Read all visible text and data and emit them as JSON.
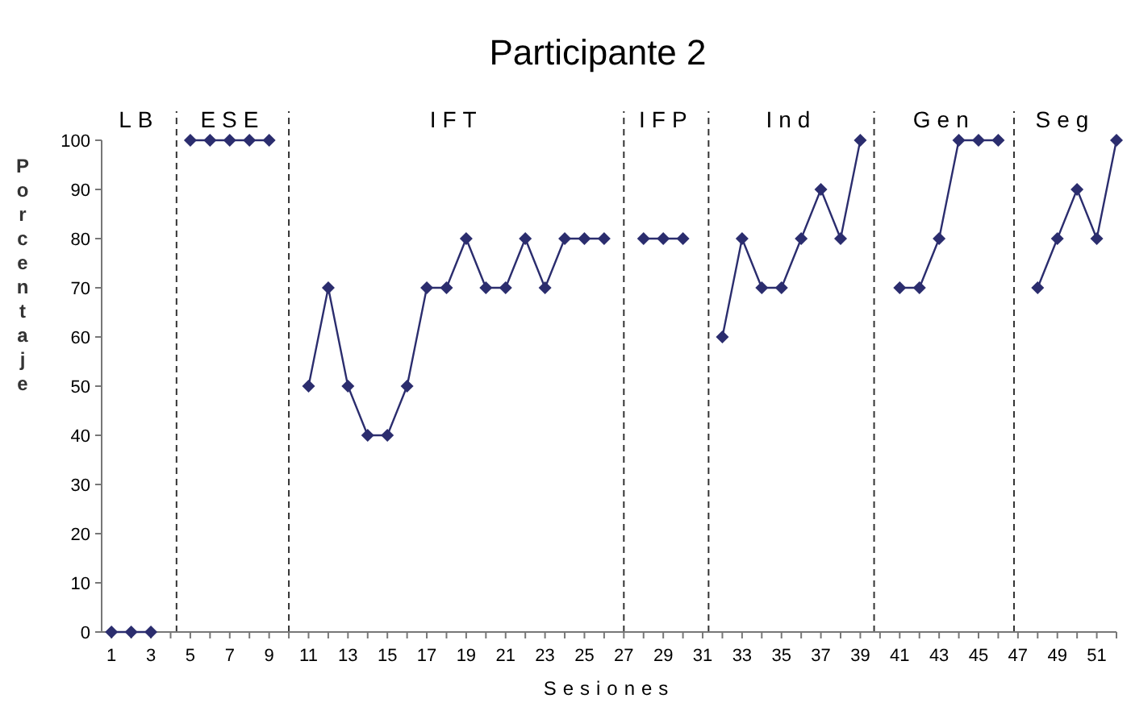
{
  "chart_data": {
    "type": "line",
    "title": "Participante 2",
    "xlabel": "Sesiones",
    "ylabel": "Porcentaje",
    "series": [
      {
        "color": "#2b2d6e",
        "x": [
          1,
          2,
          3
        ],
        "values": [
          0,
          0,
          0
        ]
      },
      {
        "color": "#2b2d6e",
        "x": [
          5,
          6,
          7,
          8,
          9
        ],
        "values": [
          100,
          100,
          100,
          100,
          100
        ]
      },
      {
        "color": "#2b2d6e",
        "x": [
          11,
          12,
          13,
          14,
          15,
          16,
          17,
          18,
          19,
          20,
          21,
          22,
          23,
          24,
          25,
          26
        ],
        "values": [
          50,
          70,
          50,
          40,
          40,
          50,
          70,
          70,
          80,
          70,
          70,
          80,
          70,
          80,
          80,
          80
        ]
      },
      {
        "color": "#2b2d6e",
        "x": [
          28,
          29,
          30
        ],
        "values": [
          80,
          80,
          80
        ]
      },
      {
        "color": "#2b2d6e",
        "x": [
          32,
          33,
          34,
          35,
          36,
          37,
          38,
          39
        ],
        "values": [
          60,
          80,
          70,
          70,
          80,
          90,
          80,
          100
        ]
      },
      {
        "color": "#2b2d6e",
        "x": [
          41,
          42,
          43,
          44,
          45,
          46
        ],
        "values": [
          70,
          70,
          80,
          100,
          100,
          100
        ]
      },
      {
        "color": "#2b2d6e",
        "x": [
          48,
          49,
          50,
          51,
          52
        ],
        "values": [
          70,
          80,
          90,
          80,
          100
        ]
      }
    ],
    "xlim": [
      0.5,
      52
    ],
    "ylim": [
      0,
      100
    ],
    "xticks": [
      1,
      {
        "value": 2,
        "label": null
      },
      3,
      {
        "value": 4,
        "label": null
      },
      5,
      {
        "value": 6,
        "label": null
      },
      7,
      {
        "value": 8,
        "label": null
      },
      9,
      {
        "value": 10,
        "label": null
      },
      11,
      {
        "value": 12,
        "label": null
      },
      13,
      {
        "value": 14,
        "label": null
      },
      15,
      {
        "value": 16,
        "label": null
      },
      17,
      {
        "value": 18,
        "label": null
      },
      19,
      {
        "value": 20,
        "label": null
      },
      21,
      {
        "value": 22,
        "label": null
      },
      23,
      {
        "value": 24,
        "label": null
      },
      25,
      {
        "value": 26,
        "label": null
      },
      27,
      {
        "value": 28,
        "label": null
      },
      29,
      {
        "value": 30,
        "label": null
      },
      31,
      {
        "value": 32,
        "label": null
      },
      33,
      {
        "value": 34,
        "label": null
      },
      35,
      {
        "value": 36,
        "label": null
      },
      37,
      {
        "value": 38,
        "label": null
      },
      39,
      {
        "value": 40,
        "label": null
      },
      41,
      {
        "value": 42,
        "label": null
      },
      43,
      {
        "value": 44,
        "label": null
      },
      45,
      {
        "value": 46,
        "label": null
      },
      47,
      {
        "value": 48,
        "label": null
      },
      49,
      {
        "value": 50,
        "label": null
      },
      51,
      {
        "value": 52,
        "label": null
      }
    ],
    "yticks": [
      0,
      10,
      20,
      30,
      40,
      50,
      60,
      70,
      80,
      90,
      100
    ],
    "ref_lines": [
      {
        "axis": "x",
        "value": 4.3,
        "line_style": "dashed",
        "color": "#333333"
      },
      {
        "axis": "x",
        "value": 10,
        "line_style": "dashed",
        "color": "#333333"
      },
      {
        "axis": "x",
        "value": 27,
        "line_style": "dashed",
        "color": "#333333"
      },
      {
        "axis": "x",
        "value": 31.3,
        "line_style": "dashed",
        "color": "#333333"
      },
      {
        "axis": "x",
        "value": 39.7,
        "line_style": "dashed",
        "color": "#333333"
      },
      {
        "axis": "x",
        "value": 46.8,
        "line_style": "dashed",
        "color": "#333333"
      }
    ],
    "annotations": [
      "LB",
      "ESE",
      "IFT",
      "IFP",
      "Ind",
      "Gen",
      "Seg"
    ],
    "marker": "diamond",
    "line_style": "solid",
    "grid": false
  }
}
